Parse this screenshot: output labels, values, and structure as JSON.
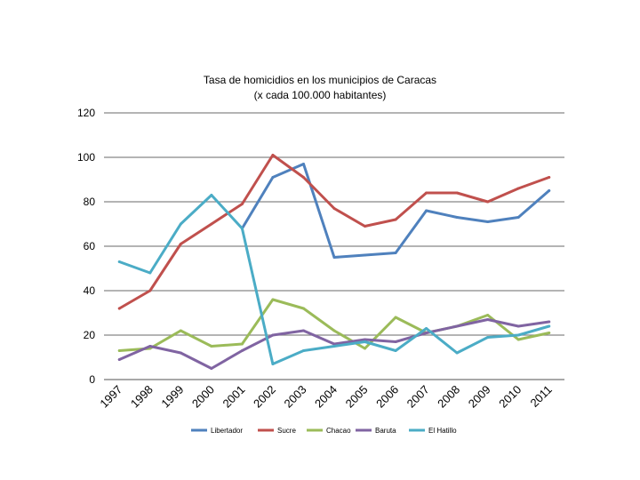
{
  "chart_data": {
    "type": "line",
    "title": "Tasa de homicidios en los municipios de Caracas",
    "subtitle": "(x cada 100.000 habitantes)",
    "x": [
      "1997",
      "1998",
      "1999",
      "2000",
      "2001",
      "2002",
      "2003",
      "2004",
      "2005",
      "2006",
      "2007",
      "2008",
      "2009",
      "2010",
      "2011"
    ],
    "ylim": [
      0,
      120
    ],
    "yticks": [
      0,
      20,
      40,
      60,
      80,
      100,
      120
    ],
    "grid": true,
    "legend_position": "bottom",
    "series": [
      {
        "name": "Libertador",
        "color": "#4F81BD",
        "values": [
          null,
          null,
          null,
          null,
          68,
          91,
          97,
          55,
          56,
          57,
          76,
          73,
          71,
          73,
          85
        ]
      },
      {
        "name": "Sucre",
        "color": "#C0504D",
        "values": [
          32,
          40,
          61,
          70,
          79,
          101,
          91,
          77,
          69,
          72,
          84,
          84,
          80,
          86,
          91
        ]
      },
      {
        "name": "Chacao",
        "color": "#9BBB59",
        "values": [
          13,
          14,
          22,
          15,
          16,
          36,
          32,
          22,
          14,
          28,
          21,
          24,
          29,
          18,
          21
        ]
      },
      {
        "name": "Baruta",
        "color": "#8064A2",
        "values": [
          9,
          15,
          12,
          5,
          13,
          20,
          22,
          16,
          18,
          17,
          21,
          24,
          27,
          24,
          26
        ]
      },
      {
        "name": "El Hatillo",
        "color": "#4BACC6",
        "values": [
          53,
          48,
          70,
          83,
          68,
          7,
          13,
          15,
          17,
          13,
          23,
          12,
          19,
          20,
          24
        ]
      }
    ]
  }
}
